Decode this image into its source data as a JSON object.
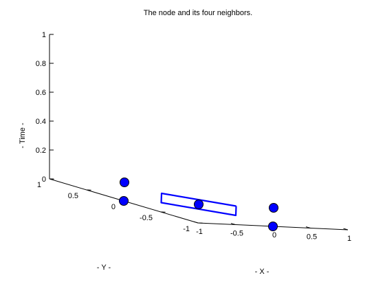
{
  "chart_data": {
    "type": "scatter",
    "projection": "3d",
    "title": "The node and its four neighbors.",
    "xlabel": "- X -",
    "ylabel": "- Y -",
    "zlabel": "- Time -",
    "xlim": [
      -1,
      1
    ],
    "ylim": [
      -1,
      1
    ],
    "zlim": [
      0,
      1
    ],
    "xticks": [
      -1,
      -0.5,
      0,
      0.5,
      1
    ],
    "yticks": [
      -1,
      -0.5,
      0,
      0.5,
      1
    ],
    "zticks": [
      0,
      0.2,
      0.4,
      0.6,
      0.8,
      1
    ],
    "xtick_labels": [
      "-1",
      "-0.5",
      "0",
      "0.5",
      "1"
    ],
    "ytick_labels": [
      "-1",
      "-0.5",
      "0",
      "0.5",
      "1"
    ],
    "ztick_labels": [
      "0",
      "0.2",
      "0.4",
      "0.6",
      "0.8",
      "1"
    ],
    "grid": false,
    "marker_color": "#0000ff",
    "line_color": "#0000ff",
    "points": [
      {
        "x": 0,
        "y": 0,
        "z": 0
      },
      {
        "x": 1,
        "y": 0,
        "z": 0
      },
      {
        "x": -1,
        "y": 0,
        "z": 0
      },
      {
        "x": 0,
        "y": 1,
        "z": 0
      },
      {
        "x": 0,
        "y": -1,
        "z": 0
      }
    ],
    "polygon": [
      {
        "x": 0.5,
        "y": 0,
        "z": 0
      },
      {
        "x": 0,
        "y": 0.5,
        "z": 0
      },
      {
        "x": -0.5,
        "y": 0,
        "z": 0
      },
      {
        "x": 0,
        "y": -0.5,
        "z": 0
      },
      {
        "x": 0.5,
        "y": 0,
        "z": 0
      }
    ]
  }
}
